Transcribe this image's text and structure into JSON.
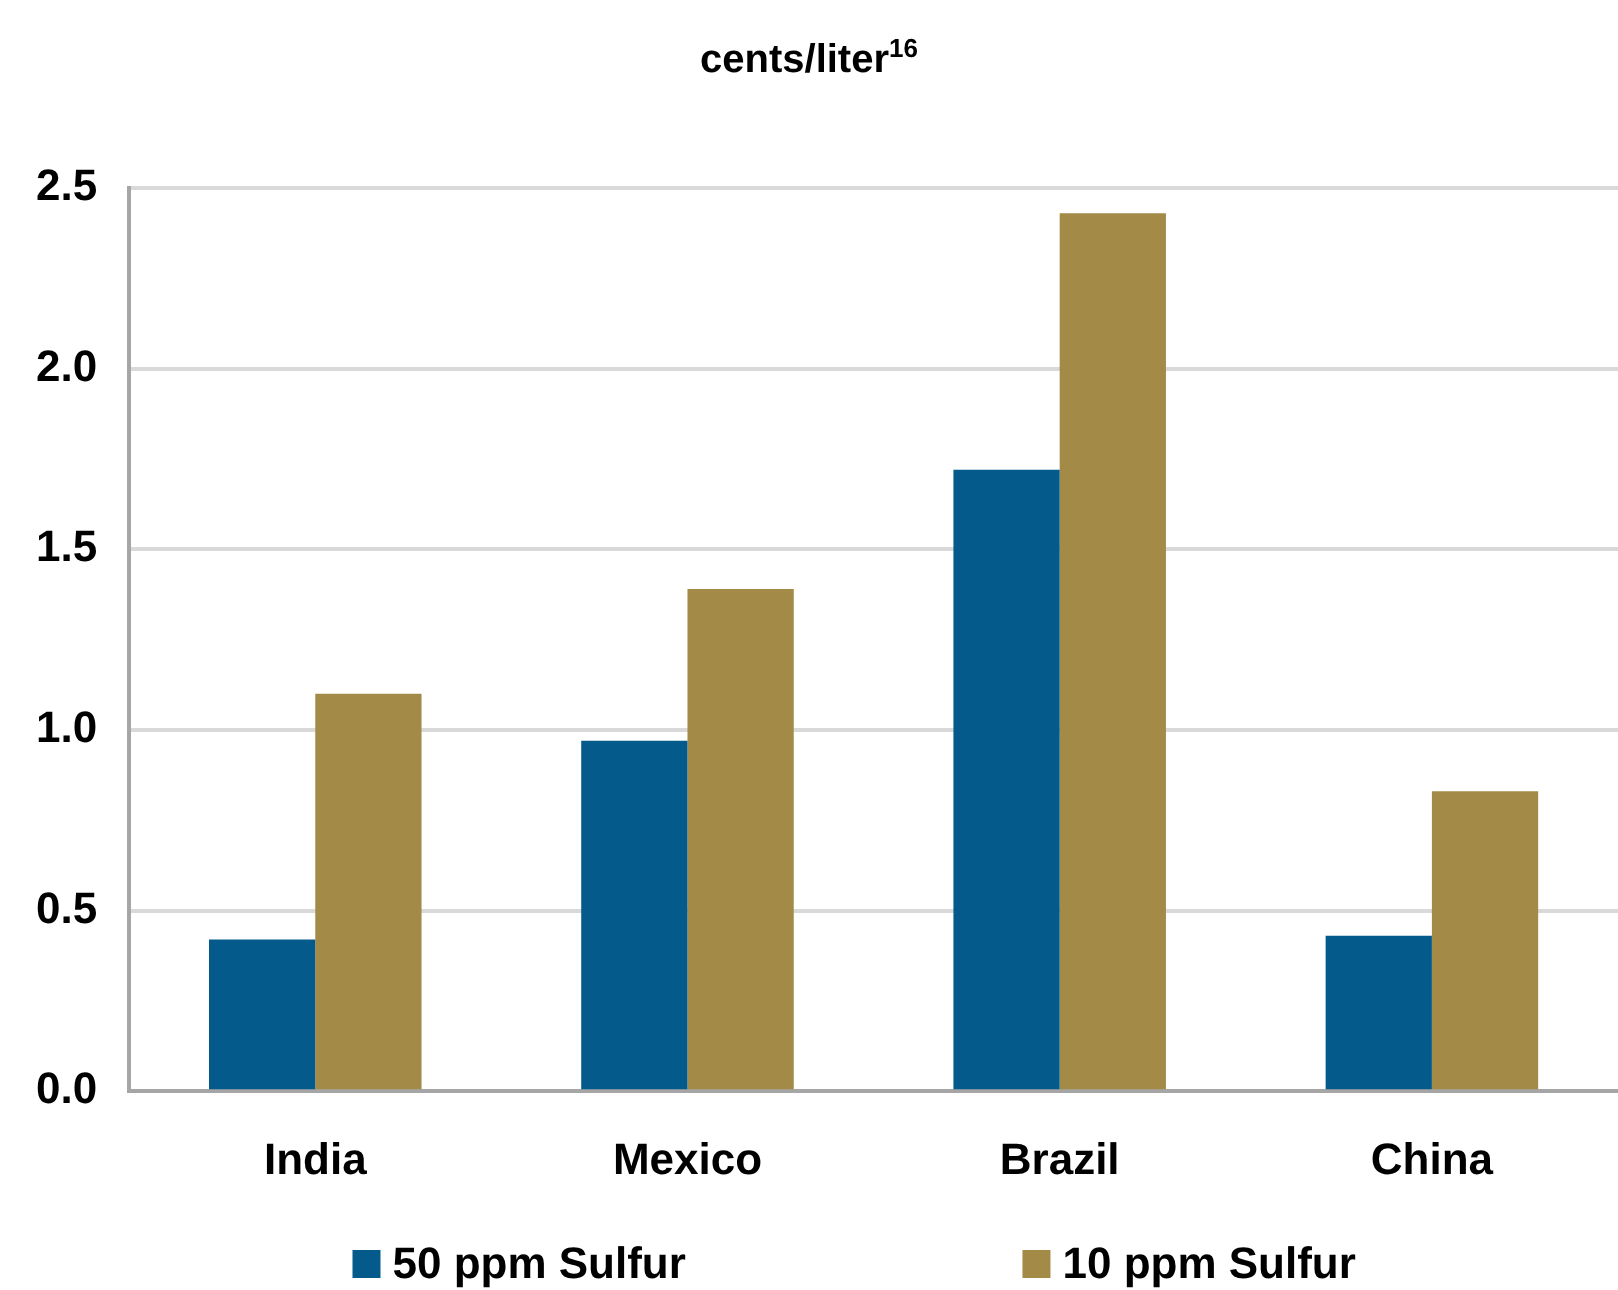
{
  "chart_data": {
    "type": "bar",
    "title": "cents/liter$^{16}$",
    "categories": [
      "India",
      "Mexico",
      "Brazil",
      "China"
    ],
    "series": [
      {
        "name": "50 ppm Sulfur",
        "color": "#055a8c",
        "values": [
          0.42,
          0.97,
          1.72,
          0.43
        ]
      },
      {
        "name": "10 ppm Sulfur",
        "color": "#a38a46",
        "values": [
          1.1,
          1.39,
          2.43,
          0.83
        ]
      }
    ],
    "ylim": [
      0,
      2.5
    ],
    "yticks": [
      {
        "value": 0,
        "label": "0.0"
      },
      0.5,
      {
        "value": 1,
        "label": "1.0"
      },
      1.5,
      {
        "value": 2,
        "label": "2.0"
      },
      2.5
    ],
    "grid": "y",
    "legend": "bottom"
  }
}
